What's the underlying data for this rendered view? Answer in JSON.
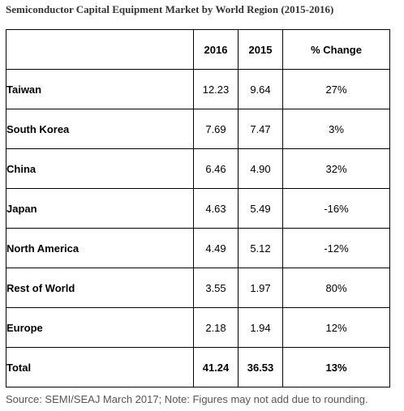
{
  "title": "Semiconductor Capital Equipment Market by World Region (2015-2016)",
  "columns": [
    "",
    "2016",
    "2015",
    "% Change"
  ],
  "rows": [
    {
      "region": "Taiwan",
      "y2016": "12.23",
      "y2015": "9.64",
      "change": "27%"
    },
    {
      "region": "South Korea",
      "y2016": "7.69",
      "y2015": "7.47",
      "change": "3%"
    },
    {
      "region": "China",
      "y2016": "6.46",
      "y2015": "4.90",
      "change": "32%"
    },
    {
      "region": "Japan",
      "y2016": "4.63",
      "y2015": "5.49",
      "change": "-16%"
    },
    {
      "region": "North America",
      "y2016": "4.49",
      "y2015": "5.12",
      "change": "-12%"
    },
    {
      "region": "Rest of World",
      "y2016": "3.55",
      "y2015": "1.97",
      "change": "80%"
    },
    {
      "region": "Europe",
      "y2016": "2.18",
      "y2015": "1.94",
      "change": "12%"
    }
  ],
  "total": {
    "region": "Total",
    "y2016": "41.24",
    "y2015": "36.53",
    "change": "13%"
  },
  "source": "Source: SEMI/SEAJ March 2017; Note: Figures may not add due to rounding.",
  "chart_data": {
    "type": "table",
    "title": "Semiconductor Capital Equipment Market by World Region (2015-2016)",
    "columns": [
      "",
      "2016",
      "2015",
      "% Change"
    ],
    "categories": [
      "Taiwan",
      "South Korea",
      "China",
      "Japan",
      "North America",
      "Rest of World",
      "Europe",
      "Total"
    ],
    "series": [
      {
        "name": "2016",
        "values": [
          12.23,
          7.69,
          6.46,
          4.63,
          4.49,
          3.55,
          2.18,
          41.24
        ]
      },
      {
        "name": "2015",
        "values": [
          9.64,
          7.47,
          4.9,
          5.49,
          5.12,
          1.97,
          1.94,
          36.53
        ]
      },
      {
        "name": "% Change",
        "values": [
          27,
          3,
          32,
          -16,
          -12,
          80,
          12,
          13
        ]
      }
    ],
    "source": "Source: SEMI/SEAJ March 2017; Note: Figures may not add due to rounding."
  }
}
